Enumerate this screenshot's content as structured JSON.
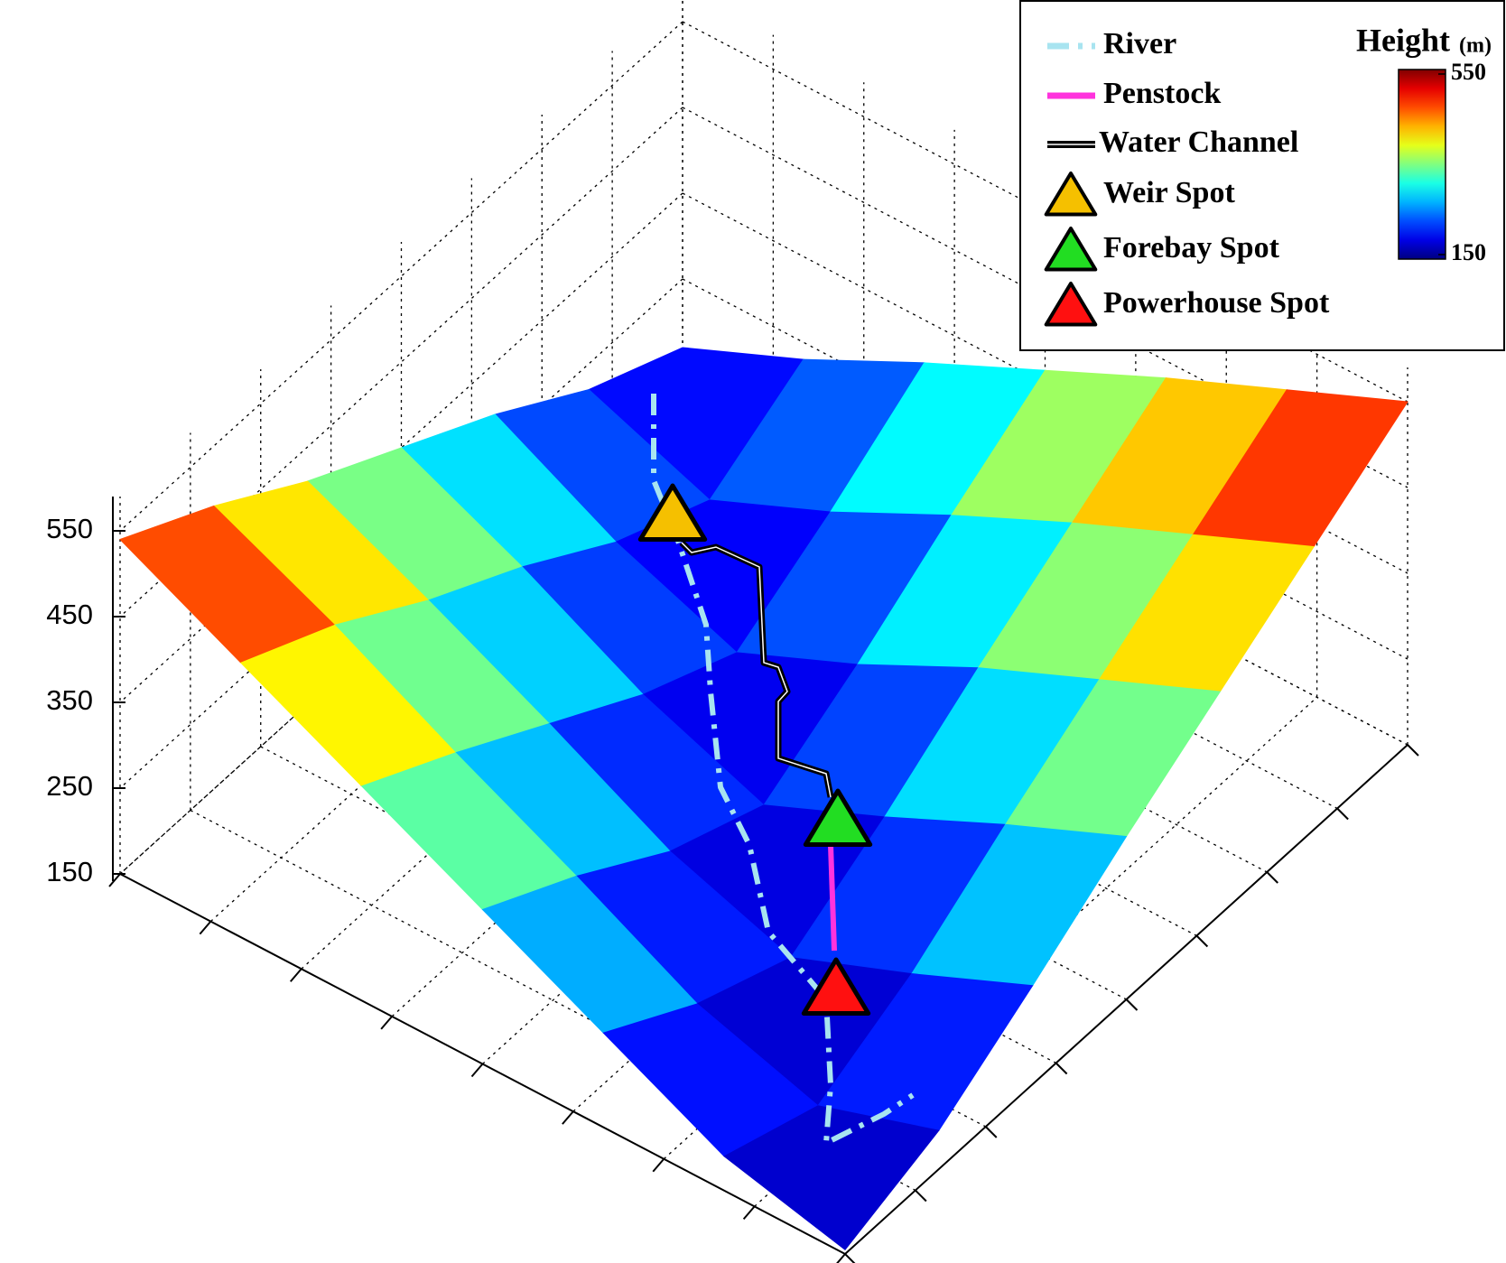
{
  "chart_data": {
    "type": "surface",
    "z": [
      [
        540,
        480,
        410,
        350,
        290,
        220,
        170
      ],
      [
        470,
        415,
        345,
        285,
        215,
        165,
        230
      ],
      [
        400,
        340,
        275,
        210,
        160,
        225,
        300
      ],
      [
        330,
        270,
        200,
        155,
        220,
        295,
        365
      ],
      [
        260,
        195,
        150,
        215,
        290,
        360,
        430
      ],
      [
        190,
        150,
        205,
        280,
        350,
        420,
        490
      ],
      [
        155,
        195,
        265,
        340,
        410,
        480,
        550
      ]
    ],
    "zlim": [
      150,
      590
    ],
    "zticks": [
      150,
      250,
      350,
      450,
      550
    ],
    "clim": [
      140,
      560
    ],
    "colormap": "jet",
    "grid": true,
    "colorbar": {
      "title": "Height",
      "unit": "(m)",
      "ticks": [
        150,
        550
      ]
    },
    "legend_position": "upper right",
    "legend": [
      {
        "name": "River",
        "color": "#a8e4f0",
        "line": "dash-dot"
      },
      {
        "name": "Penstock",
        "color": "#ff33dd",
        "line": "solid"
      },
      {
        "name": "Water Channel",
        "color": "#000000",
        "line": "double"
      },
      {
        "name": "Weir Spot",
        "color": "#f5c000",
        "marker": "triangle"
      },
      {
        "name": "Forebay Spot",
        "color": "#22dd22",
        "marker": "triangle"
      },
      {
        "name": "Powerhouse Spot",
        "color": "#ff1010",
        "marker": "triangle"
      }
    ]
  }
}
